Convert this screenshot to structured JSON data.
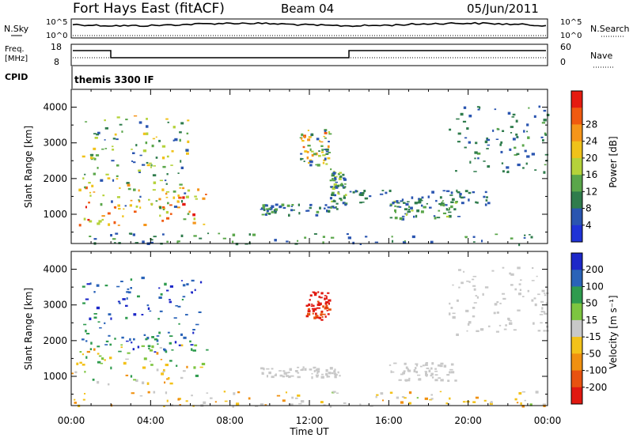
{
  "header": {
    "station": "Fort Hays East (fitACF)",
    "beam": "Beam 04",
    "date": "05/Jun/2011"
  },
  "noise_panel": {
    "left_label": "N.Sky",
    "right_label": "N.Search",
    "tick_top": "10^5",
    "tick_bottom": "10^0"
  },
  "freq_panel": {
    "left_label_1": "Freq.",
    "left_label_2": "[MHz]",
    "right_label": "Nave",
    "left_ticks": [
      "18",
      "8"
    ],
    "right_ticks": [
      "60",
      "0"
    ]
  },
  "cpid": {
    "label": "CPID",
    "value": "themis 3300 IF"
  },
  "colors": {
    "power": [
      "#1f33d6",
      "#2a55b0",
      "#2f7c4c",
      "#5aa64a",
      "#b5d23a",
      "#f0c21a",
      "#f5951a",
      "#f05a10",
      "#e51b10"
    ],
    "velocity": [
      "#1d28c8",
      "#2a63b8",
      "#2f9b4e",
      "#7dc540",
      "#c8c8c8",
      "#f3c21a",
      "#f09010",
      "#e85210",
      "#e01810"
    ]
  },
  "chart_data": [
    {
      "type": "heatmap",
      "panel": "power",
      "ylabel": "Slant Range [km]",
      "xlabel": "Time UT",
      "x_ticks": [
        "00:00",
        "04:00",
        "08:00",
        "12:00",
        "16:00",
        "20:00",
        "00:00"
      ],
      "y_ticks": [
        1000,
        2000,
        3000,
        4000
      ],
      "colorbar_label": "Power [dB]",
      "colorbar_ticks": [
        4,
        8,
        12,
        16,
        20,
        24,
        28
      ],
      "scatter_regions": [
        {
          "t0": 0.0,
          "t1": 6.8,
          "r0": 700,
          "r1": 1800,
          "v0": 14,
          "v1": 30
        },
        {
          "t0": 0.5,
          "t1": 6.0,
          "r0": 1200,
          "r1": 3800,
          "v0": 4,
          "v1": 22
        },
        {
          "t0": 9.5,
          "t1": 13.5,
          "r0": 1000,
          "r1": 1300,
          "v0": 4,
          "v1": 14
        },
        {
          "t0": 11.5,
          "t1": 13.0,
          "r0": 2400,
          "r1": 3400,
          "v0": 4,
          "v1": 26
        },
        {
          "t0": 13.0,
          "t1": 13.8,
          "r0": 1300,
          "r1": 2300,
          "v0": 4,
          "v1": 16
        },
        {
          "t0": 16.0,
          "t1": 19.5,
          "r0": 900,
          "r1": 1400,
          "v0": 4,
          "v1": 16
        },
        {
          "t0": 14.0,
          "t1": 21.0,
          "r0": 1300,
          "r1": 1700,
          "v0": 4,
          "v1": 10
        },
        {
          "t0": 19.0,
          "t1": 24.0,
          "r0": 2200,
          "r1": 4100,
          "v0": 4,
          "v1": 12
        },
        {
          "t0": 0.0,
          "t1": 24.0,
          "r0": 180,
          "r1": 500,
          "v0": 4,
          "v1": 14
        }
      ]
    },
    {
      "type": "heatmap",
      "panel": "velocity",
      "ylabel": "Slant Range [km]",
      "xlabel": "Time UT",
      "x_ticks": [
        "00:00",
        "04:00",
        "08:00",
        "12:00",
        "16:00",
        "20:00",
        "00:00"
      ],
      "y_ticks": [
        1000,
        2000,
        3000,
        4000
      ],
      "colorbar_label": "Velocity [m s⁻¹]",
      "colorbar_ticks": [
        200,
        100,
        50,
        15,
        -15,
        -50,
        -100,
        -200
      ],
      "scatter_regions": [
        {
          "t0": 0.0,
          "t1": 6.8,
          "r0": 800,
          "r1": 1900,
          "v0": -120,
          "v1": 120
        },
        {
          "t0": 0.5,
          "t1": 6.5,
          "r0": 1700,
          "r1": 3800,
          "v0": 100,
          "v1": 220
        },
        {
          "t0": 11.8,
          "t1": 13.0,
          "r0": 2600,
          "r1": 3400,
          "v0": -220,
          "v1": -180
        },
        {
          "t0": 9.5,
          "t1": 13.5,
          "r0": 1000,
          "r1": 1300,
          "v0": -10,
          "v1": 10
        },
        {
          "t0": 16.0,
          "t1": 19.5,
          "r0": 900,
          "r1": 1400,
          "v0": -10,
          "v1": 10
        },
        {
          "t0": 19.0,
          "t1": 24.0,
          "r0": 2200,
          "r1": 4100,
          "v0": -10,
          "v1": 10
        },
        {
          "t0": 0.0,
          "t1": 24.0,
          "r0": 180,
          "r1": 600,
          "v0": -120,
          "v1": 30
        }
      ]
    }
  ]
}
